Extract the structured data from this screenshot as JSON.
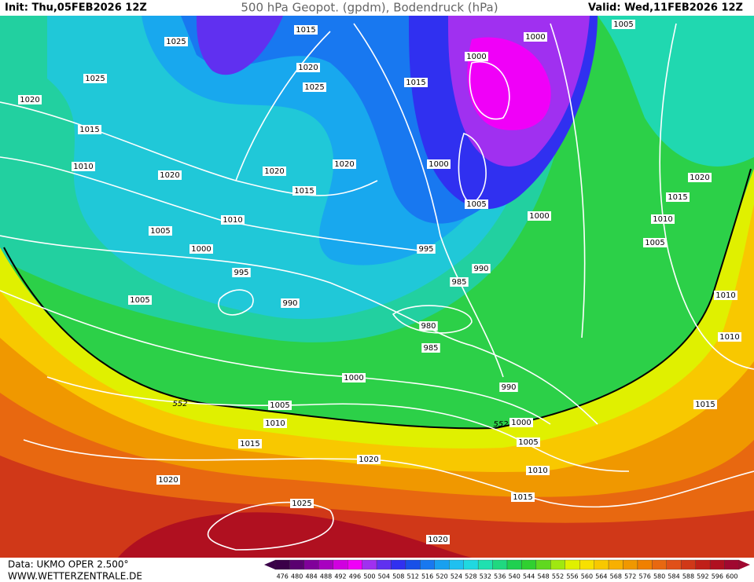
{
  "header": {
    "init": "Init: Thu,05FEB2026 12Z",
    "title": "500 hPa Geopot. (gpdm), Bodendruck (hPa)",
    "valid": "Valid: Wed,11FEB2026 12Z"
  },
  "footer": {
    "source": "Data: UKMO OPER 2.500°",
    "website": "WWW.WETTERZENTRALE.DE"
  },
  "colorbar": {
    "levels": [
      476,
      480,
      484,
      488,
      492,
      496,
      500,
      504,
      508,
      512,
      516,
      520,
      524,
      528,
      532,
      536,
      540,
      544,
      548,
      552,
      556,
      560,
      564,
      568,
      572,
      576,
      580,
      584,
      588,
      592,
      596,
      600
    ],
    "colors": [
      "#3a0048",
      "#5a0070",
      "#80009a",
      "#a800c0",
      "#d000e0",
      "#f000f8",
      "#a030f0",
      "#6030f0",
      "#3030f0",
      "#1850e8",
      "#1878f0",
      "#18a0f0",
      "#20c0f0",
      "#20d8e0",
      "#20e0b0",
      "#20d880",
      "#20d050",
      "#30d030",
      "#60d820",
      "#a0e810",
      "#e0f000",
      "#f8e000",
      "#f8c800",
      "#f8b000",
      "#f09800",
      "#f08000",
      "#e86810",
      "#e05018",
      "#d03818",
      "#c02018",
      "#b01020",
      "#a00830"
    ]
  },
  "isobar_labels": [
    1015,
    1025,
    1000,
    1005,
    1025,
    1020,
    1025,
    1000,
    1015,
    1020,
    1015,
    1010,
    1020,
    1020,
    1020,
    1000,
    1015,
    1020,
    1015,
    1005,
    1000,
    1010,
    1010,
    1005,
    1005,
    1000,
    995,
    990,
    995,
    985,
    1005,
    990,
    1010,
    980,
    1010,
    985,
    1000,
    990,
    552,
    1005,
    1015,
    1010,
    552,
    1000,
    1015,
    1005,
    1020,
    1010,
    1020,
    1015,
    1025,
    1020
  ]
}
